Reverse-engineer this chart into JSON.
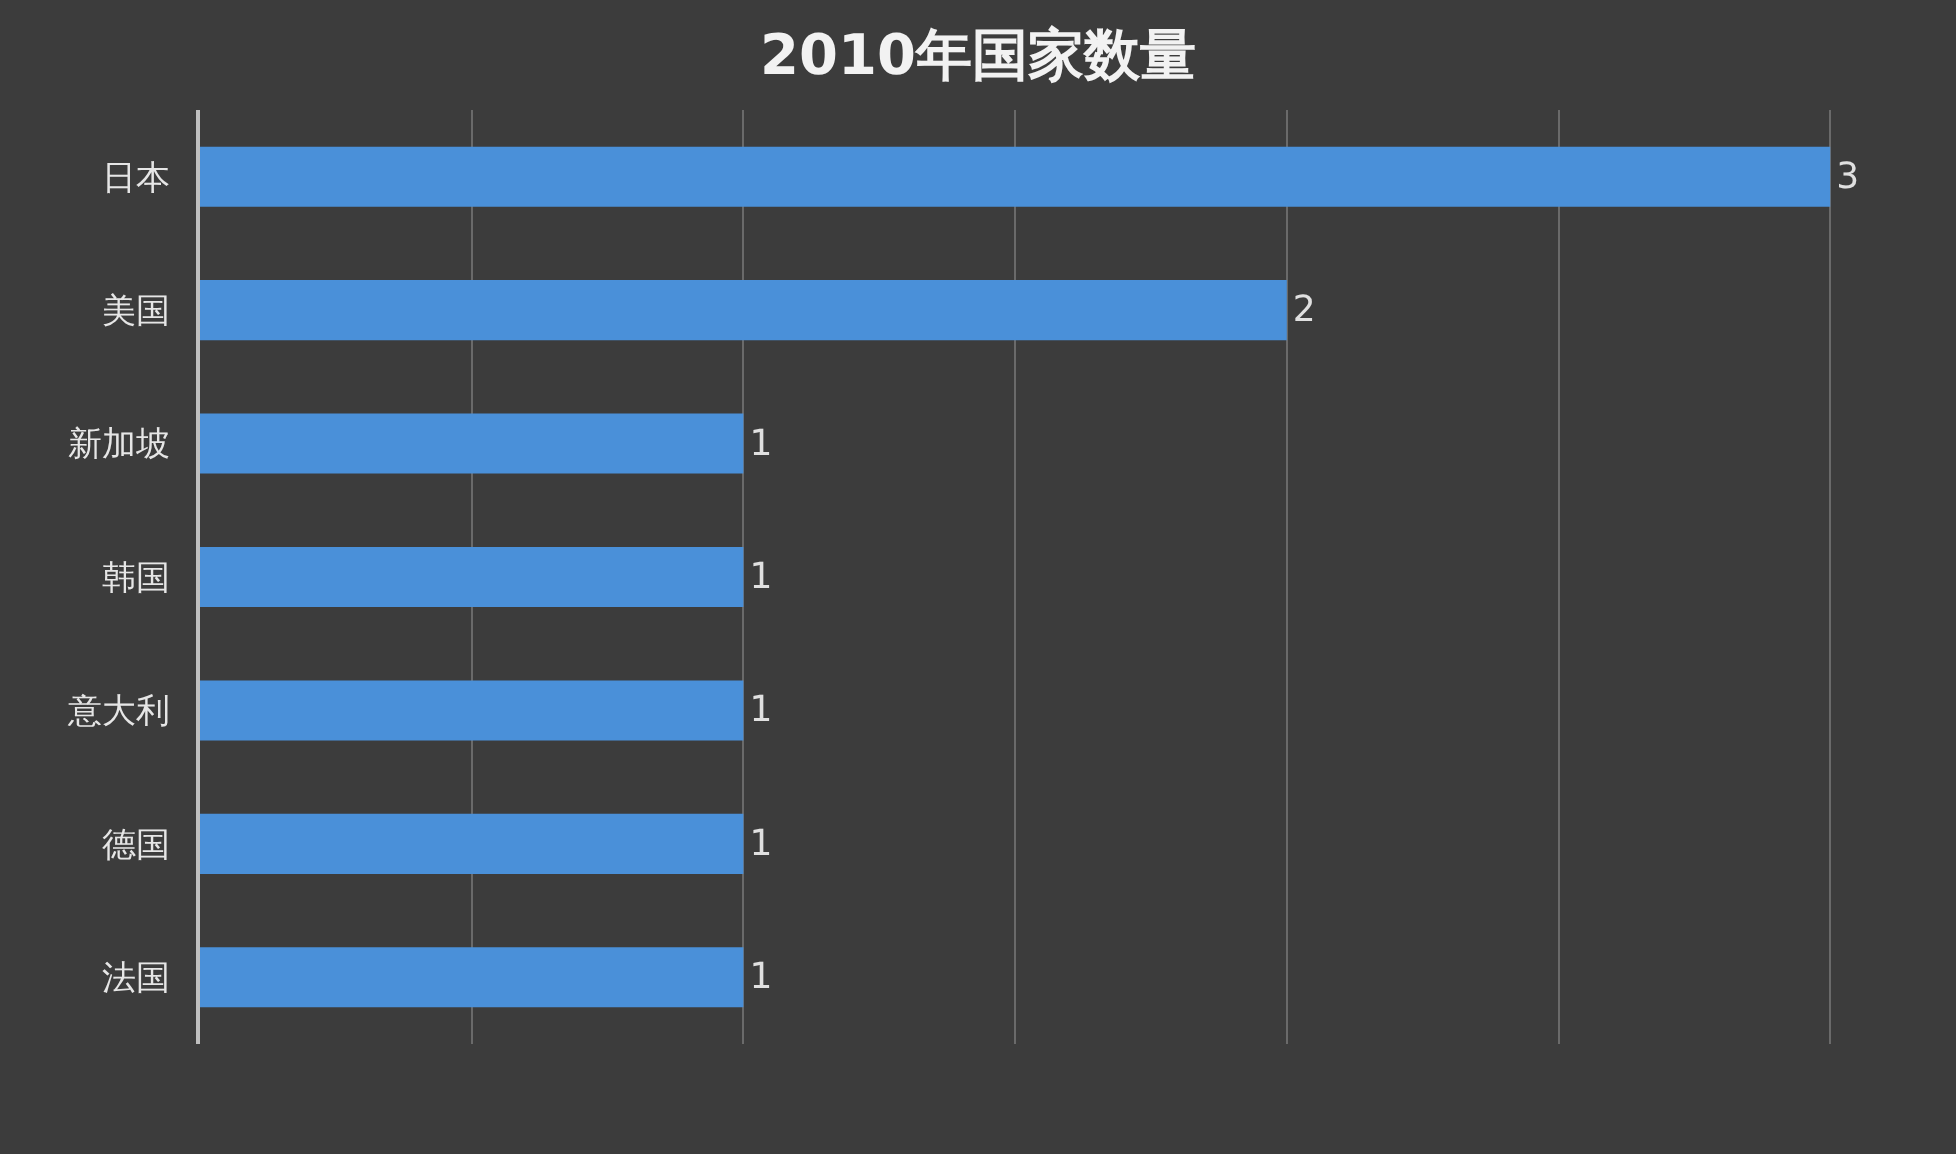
{
  "chart_data": {
    "type": "bar",
    "orientation": "horizontal",
    "title": "2010年国家数量",
    "categories": [
      "日本",
      "美国",
      "新加坡",
      "韩国",
      "意大利",
      "德国",
      "法国"
    ],
    "values": [
      3,
      2,
      1,
      1,
      1,
      1,
      1
    ],
    "color": "#4a90d9",
    "data_labels": true,
    "grid": "x",
    "tick_labels": "y"
  }
}
